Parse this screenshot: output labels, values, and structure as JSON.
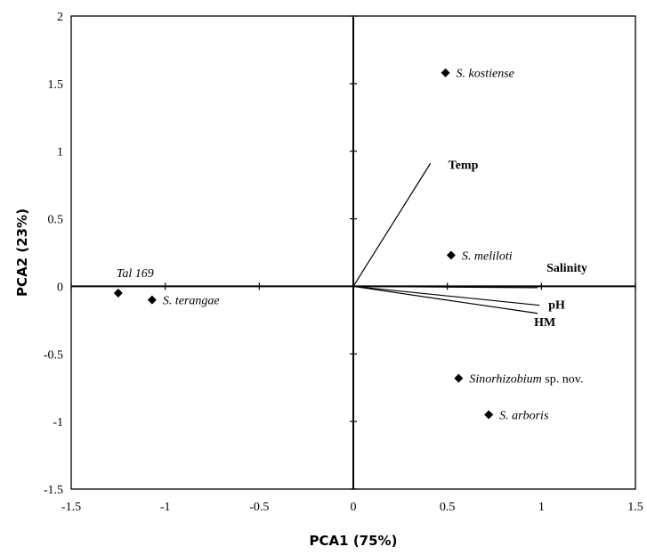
{
  "chart_data": {
    "type": "scatter",
    "title": "",
    "xlabel": "PCA1 (75%)",
    "ylabel": "PCA2 (23%)",
    "xlim": [
      -1.5,
      1.5
    ],
    "ylim": [
      -1.5,
      2
    ],
    "x_ticks": [
      "-1.5",
      "-1",
      "-0.5",
      "0",
      "0.5",
      "1",
      "1.5"
    ],
    "y_ticks": [
      "2",
      "1.5",
      "1",
      "0.5",
      "0",
      "-0.5",
      "-1",
      "-1.5"
    ],
    "grid": false,
    "points": [
      {
        "x": -1.25,
        "y": -0.05,
        "label": "Tal 169",
        "label_pos": "above"
      },
      {
        "x": -1.07,
        "y": -0.1,
        "label": "S. terangae",
        "label_pos": "right"
      },
      {
        "x": 0.49,
        "y": 1.58,
        "label": "S. kostiense",
        "label_pos": "right"
      },
      {
        "x": 0.52,
        "y": 0.23,
        "label": "S. meliloti",
        "label_pos": "right"
      },
      {
        "x": 0.56,
        "y": -0.68,
        "label_italic": "Sinorhizobium",
        "label_suffix": " sp. nov.",
        "label_pos": "right"
      },
      {
        "x": 0.72,
        "y": -0.95,
        "label": "S. arboris",
        "label_pos": "right"
      }
    ],
    "vectors": [
      {
        "name": "Temp",
        "x": 0.41,
        "y": 0.91
      },
      {
        "name": "Salinity",
        "x": 0.98,
        "y": -0.01
      },
      {
        "name": "pH",
        "x": 0.99,
        "y": -0.14
      },
      {
        "name": "HM",
        "x": 0.98,
        "y": -0.2
      }
    ]
  }
}
